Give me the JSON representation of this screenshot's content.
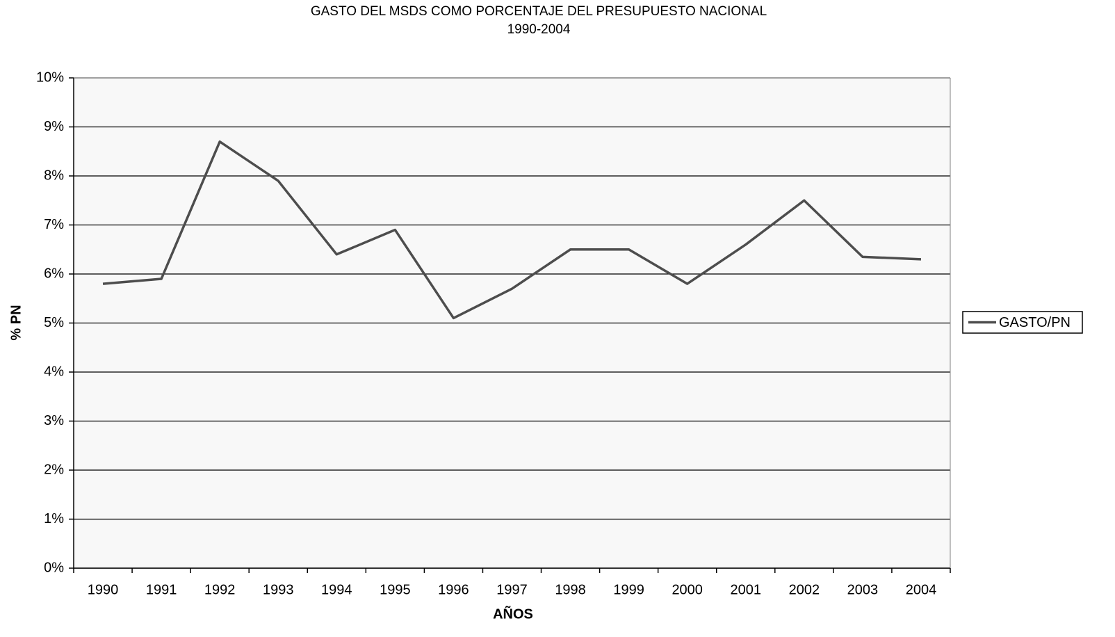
{
  "chart_data": {
    "type": "line",
    "title": "GASTO DEL MSDS COMO PORCENTAJE DEL PRESUPUESTO NACIONAL",
    "subtitle": "1990-2004",
    "x_label": "AÑOS",
    "y_label": "% PN",
    "categories": [
      "1990",
      "1991",
      "1992",
      "1993",
      "1994",
      "1995",
      "1996",
      "1997",
      "1998",
      "1999",
      "2000",
      "2001",
      "2002",
      "2003",
      "2004"
    ],
    "series": [
      {
        "name": "GASTO/PN",
        "color": "#4d4d4d",
        "values": [
          5.8,
          5.9,
          8.7,
          7.9,
          6.4,
          6.9,
          5.1,
          5.7,
          6.5,
          6.5,
          5.8,
          6.6,
          7.5,
          6.35,
          6.3
        ]
      }
    ],
    "ylim": [
      0,
      10
    ],
    "yticks": [
      {
        "value": 0,
        "label": "0%"
      },
      {
        "value": 1,
        "label": "1%"
      },
      {
        "value": 2,
        "label": "2%"
      },
      {
        "value": 3,
        "label": "3%"
      },
      {
        "value": 4,
        "label": "4%"
      },
      {
        "value": 5,
        "label": "5%"
      },
      {
        "value": 6,
        "label": "6%"
      },
      {
        "value": 7,
        "label": "7%"
      },
      {
        "value": 8,
        "label": "8%"
      },
      {
        "value": 9,
        "label": "9%"
      },
      {
        "value": 10,
        "label": "10%"
      }
    ],
    "grid": true,
    "legend": "right"
  }
}
